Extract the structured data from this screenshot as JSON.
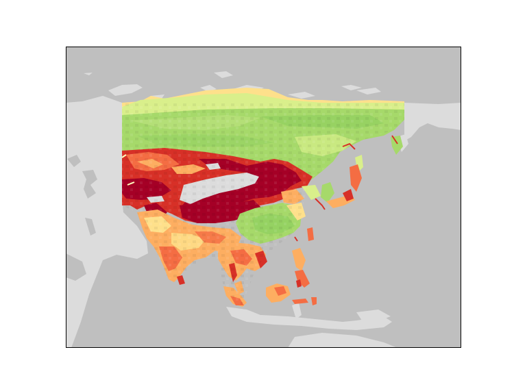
{
  "map": {
    "type": "raster-map",
    "region": "Asia",
    "title": "",
    "colors": {
      "ocean": "#bfbfbf",
      "land": "#dcdcdc",
      "frame": "#000000",
      "background": "#ffffff",
      "colormap": [
        "#a50026",
        "#d73027",
        "#f46d43",
        "#fdae61",
        "#fee08b",
        "#ffffbf",
        "#d9ef8b",
        "#a6d96a"
      ]
    },
    "legend": null,
    "graticule": false
  }
}
